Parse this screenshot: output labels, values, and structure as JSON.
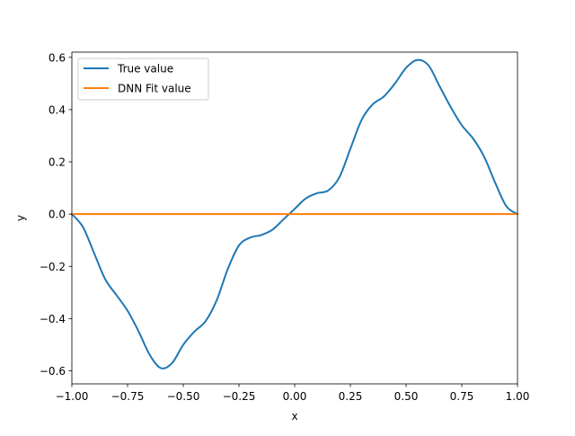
{
  "chart_data": {
    "type": "line",
    "title": "",
    "xlabel": "x",
    "ylabel": "y",
    "xlim": [
      -1.0,
      1.0
    ],
    "ylim": [
      -0.65,
      0.62
    ],
    "x_ticks": [
      -1.0,
      -0.75,
      -0.5,
      -0.25,
      0.0,
      0.25,
      0.5,
      0.75,
      1.0
    ],
    "x_tick_labels": [
      "−1.00",
      "−0.75",
      "−0.50",
      "−0.25",
      "0.00",
      "0.25",
      "0.50",
      "0.75",
      "1.00"
    ],
    "y_ticks": [
      -0.6,
      -0.4,
      -0.2,
      0.0,
      0.2,
      0.4,
      0.6
    ],
    "y_tick_labels": [
      "−0.6",
      "−0.4",
      "−0.2",
      "0.0",
      "0.2",
      "0.4",
      "0.6"
    ],
    "grid": false,
    "legend_position": "top-left",
    "series": [
      {
        "name": "True value",
        "color": "#1f77b4",
        "x": [
          -1.0,
          -0.95,
          -0.9,
          -0.85,
          -0.8,
          -0.75,
          -0.7,
          -0.65,
          -0.6,
          -0.55,
          -0.5,
          -0.45,
          -0.4,
          -0.35,
          -0.3,
          -0.25,
          -0.2,
          -0.15,
          -0.1,
          -0.05,
          0.0,
          0.05,
          0.1,
          0.15,
          0.2,
          0.25,
          0.3,
          0.35,
          0.4,
          0.45,
          0.5,
          0.55,
          0.6,
          0.65,
          0.7,
          0.75,
          0.8,
          0.85,
          0.9,
          0.95,
          1.0
        ],
        "y": [
          0.0,
          -0.05,
          -0.15,
          -0.25,
          -0.31,
          -0.37,
          -0.45,
          -0.54,
          -0.59,
          -0.57,
          -0.5,
          -0.45,
          -0.41,
          -0.33,
          -0.21,
          -0.12,
          -0.09,
          -0.08,
          -0.06,
          -0.02,
          0.02,
          0.06,
          0.08,
          0.09,
          0.14,
          0.25,
          0.36,
          0.42,
          0.45,
          0.5,
          0.56,
          0.59,
          0.57,
          0.49,
          0.41,
          0.34,
          0.29,
          0.22,
          0.12,
          0.03,
          0.0
        ]
      },
      {
        "name": "DNN Fit value",
        "color": "#ff7f0e",
        "x": [
          -1.0,
          1.0
        ],
        "y": [
          0.0,
          0.0
        ]
      }
    ]
  }
}
